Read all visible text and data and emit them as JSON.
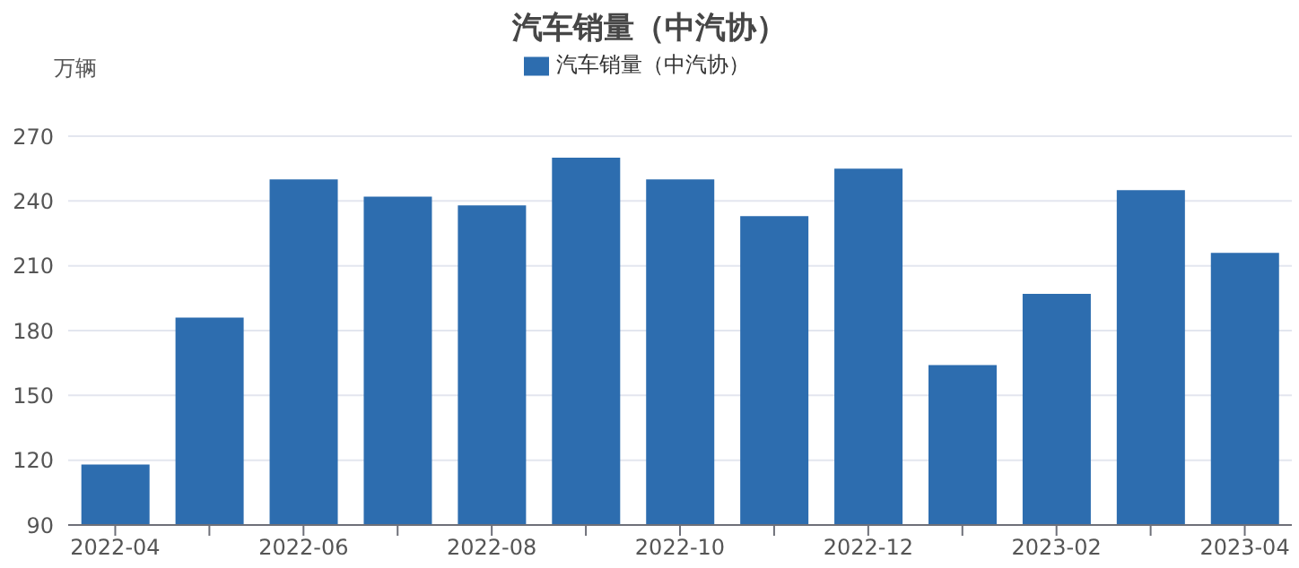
{
  "chart_data": {
    "type": "bar",
    "title": "汽车销量（中汽协）",
    "ylabel": "万辆",
    "categories": [
      "2022-04",
      null,
      "2022-06",
      null,
      "2022-08",
      null,
      "2022-10",
      null,
      "2022-12",
      null,
      "2023-02",
      null,
      "2023-04"
    ],
    "series": [
      {
        "name": "汽车销量（中汽协）",
        "color": "#2d6daf",
        "values": [
          118,
          186,
          250,
          242,
          238,
          260,
          250,
          233,
          255,
          164,
          197,
          245,
          216
        ]
      }
    ],
    "ylim": [
      90,
      270
    ],
    "yticks": [
      90,
      120,
      150,
      180,
      210,
      240,
      270
    ],
    "grid": "y",
    "legend": "top"
  }
}
